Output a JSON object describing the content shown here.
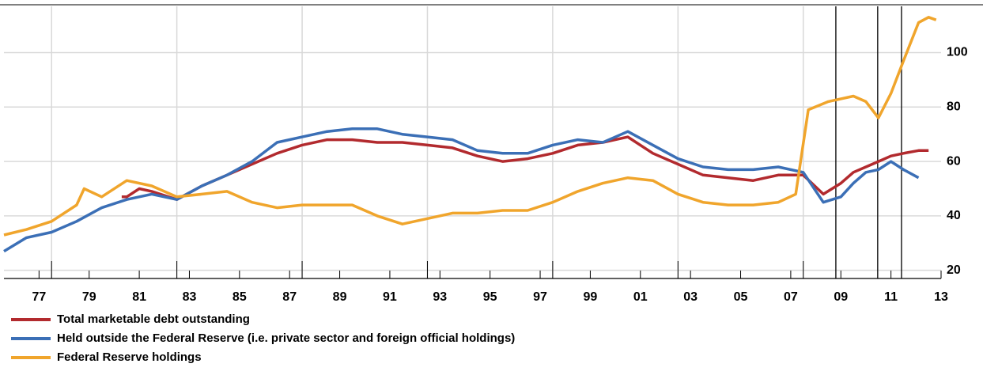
{
  "chart_data": {
    "type": "line",
    "xlim": [
      1976.1,
      2013.5
    ],
    "ylim": [
      17,
      117
    ],
    "yticks": [
      20,
      40,
      60,
      80,
      100
    ],
    "xticks": [
      {
        "value": 1977.5,
        "label": "77"
      },
      {
        "value": 1979.5,
        "label": "79"
      },
      {
        "value": 1981.5,
        "label": "81"
      },
      {
        "value": 1983.5,
        "label": "83"
      },
      {
        "value": 1985.5,
        "label": "85"
      },
      {
        "value": 1987.5,
        "label": "87"
      },
      {
        "value": 1989.5,
        "label": "89"
      },
      {
        "value": 1991.5,
        "label": "91"
      },
      {
        "value": 1993.5,
        "label": "93"
      },
      {
        "value": 1995.5,
        "label": "95"
      },
      {
        "value": 1997.5,
        "label": "97"
      },
      {
        "value": 1999.5,
        "label": "99"
      },
      {
        "value": 2001.5,
        "label": "01"
      },
      {
        "value": 2003.5,
        "label": "03"
      },
      {
        "value": 2005.5,
        "label": "05"
      },
      {
        "value": 2007.5,
        "label": "07"
      },
      {
        "value": 2009.5,
        "label": "09"
      },
      {
        "value": 2011.5,
        "label": "11"
      },
      {
        "value": 2013.5,
        "label": "13"
      }
    ],
    "x_grid": [
      1978,
      1983,
      1988,
      1993,
      1998,
      2003,
      2008
    ],
    "event_lines": [
      2009.3,
      2010.97,
      2011.92
    ],
    "grid": true,
    "series": [
      {
        "name": "Total marketable debt outstanding",
        "color": "#b22a2e",
        "x": [
          1980.8,
          1981,
          1981.5,
          1982,
          1983,
          1984,
          1985,
          1986,
          1987,
          1988,
          1989,
          1990,
          1991,
          1992,
          1993,
          1994,
          1995,
          1996,
          1997,
          1998,
          1999,
          2000,
          2001,
          2002,
          2003,
          2004,
          2005,
          2006,
          2007,
          2008,
          2008.8,
          2009.5,
          2010,
          2010.5,
          2011,
          2011.5,
          2012,
          2012.6,
          2013
        ],
        "values": [
          47,
          47,
          50,
          49,
          46,
          51,
          55,
          59,
          63,
          66,
          68,
          68,
          67,
          67,
          66,
          65,
          62,
          60,
          61,
          63,
          66,
          67,
          69,
          63,
          59,
          55,
          54,
          53,
          55,
          55,
          48,
          52,
          56,
          58,
          60,
          62,
          63,
          64,
          64
        ]
      },
      {
        "name": "Held outside the Federal Reserve (i.e. private sector and foreign official holdings)",
        "color": "#3b6fb6",
        "x": [
          1976.1,
          1977,
          1978,
          1979,
          1980,
          1981,
          1982,
          1983,
          1984,
          1985,
          1986,
          1987,
          1988,
          1989,
          1990,
          1991,
          1992,
          1993,
          1994,
          1995,
          1996,
          1997,
          1998,
          1999,
          2000,
          2001,
          2002,
          2003,
          2004,
          2005,
          2006,
          2007,
          2008,
          2008.8,
          2009.5,
          2010,
          2010.5,
          2011,
          2011.5,
          2012,
          2012.6
        ],
        "values": [
          27,
          32,
          34,
          38,
          43,
          46,
          48,
          46,
          51,
          55,
          60,
          67,
          69,
          71,
          72,
          72,
          70,
          69,
          68,
          64,
          63,
          63,
          66,
          68,
          67,
          71,
          66,
          61,
          58,
          57,
          57,
          58,
          56,
          45,
          47,
          52,
          56,
          57,
          60,
          57,
          54
        ]
      },
      {
        "name": "Federal Reserve holdings",
        "color": "#f0a52c",
        "x": [
          1976.1,
          1977,
          1978,
          1979,
          1979.3,
          1980,
          1981,
          1982,
          1983,
          1984,
          1985,
          1986,
          1987,
          1988,
          1989,
          1990,
          1991,
          1992,
          1993,
          1994,
          1995,
          1996,
          1997,
          1998,
          1999,
          2000,
          2001,
          2002,
          2003,
          2004,
          2005,
          2006,
          2007,
          2007.7,
          2008.2,
          2009,
          2010,
          2010.5,
          2011,
          2011.5,
          2012,
          2012.6,
          2013,
          2013.3
        ],
        "values": [
          33,
          35,
          38,
          44,
          50,
          47,
          53,
          51,
          47,
          48,
          49,
          45,
          43,
          44,
          44,
          44,
          40,
          37,
          39,
          41,
          41,
          42,
          42,
          45,
          49,
          52,
          54,
          53,
          48,
          45,
          44,
          44,
          45,
          48,
          79,
          82,
          84,
          82,
          76,
          85,
          97,
          111,
          113,
          112
        ]
      }
    ]
  }
}
